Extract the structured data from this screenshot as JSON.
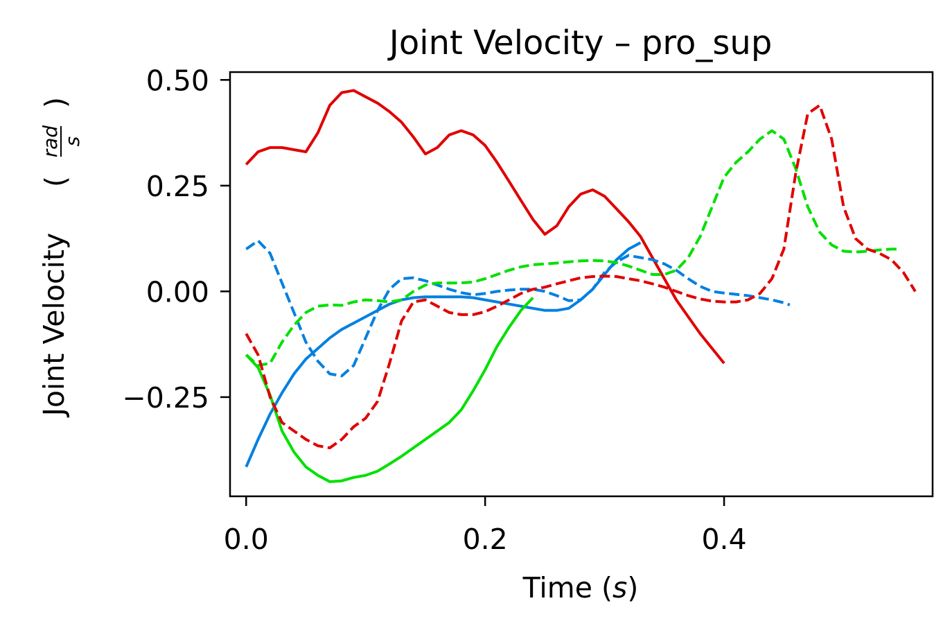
{
  "chart_data": {
    "type": "line",
    "title": "Joint Velocity – pro_sup",
    "xlabel_text": "Time (",
    "xlabel_unit": "s",
    "xlabel_close": ")",
    "ylabel_text": "Joint Velocity",
    "ylabel_unit_num": "rad",
    "ylabel_unit_den": "s",
    "xlim": [
      -0.0135,
      0.5745
    ],
    "ylim": [
      -0.4845,
      0.5185
    ],
    "xticks": [
      0.0,
      0.2,
      0.4
    ],
    "xtick_labels": [
      "0.0",
      "0.2",
      "0.4"
    ],
    "yticks": [
      0.5,
      0.25,
      0.0,
      -0.25
    ],
    "ytick_labels": [
      "0.50",
      "0.25",
      "0.00",
      "−0.25"
    ],
    "grid": false,
    "series": [
      {
        "color": "#e00000",
        "dash": "solid",
        "x": [
          0.0,
          0.01,
          0.02,
          0.03,
          0.04,
          0.05,
          0.06,
          0.07,
          0.08,
          0.09,
          0.1,
          0.11,
          0.12,
          0.13,
          0.14,
          0.15,
          0.16,
          0.17,
          0.18,
          0.19,
          0.2,
          0.21,
          0.22,
          0.23,
          0.24,
          0.25,
          0.26,
          0.27,
          0.28,
          0.29,
          0.3,
          0.31,
          0.32,
          0.33,
          0.34,
          0.35,
          0.36,
          0.37,
          0.38,
          0.39,
          0.4
        ],
        "y": [
          0.3,
          0.33,
          0.34,
          0.34,
          0.335,
          0.33,
          0.375,
          0.44,
          0.47,
          0.475,
          0.46,
          0.445,
          0.425,
          0.4,
          0.365,
          0.325,
          0.34,
          0.37,
          0.38,
          0.37,
          0.345,
          0.305,
          0.26,
          0.215,
          0.17,
          0.135,
          0.155,
          0.2,
          0.23,
          0.24,
          0.225,
          0.195,
          0.165,
          0.13,
          0.08,
          0.03,
          -0.02,
          -0.06,
          -0.1,
          -0.135,
          -0.17
        ]
      },
      {
        "color": "#0080e0",
        "dash": "solid",
        "x": [
          0.0,
          0.01,
          0.02,
          0.03,
          0.04,
          0.05,
          0.06,
          0.07,
          0.08,
          0.09,
          0.1,
          0.11,
          0.12,
          0.13,
          0.14,
          0.15,
          0.16,
          0.17,
          0.18,
          0.19,
          0.2,
          0.21,
          0.22,
          0.23,
          0.24,
          0.25,
          0.26,
          0.27,
          0.28,
          0.29,
          0.3,
          0.31,
          0.32,
          0.33
        ],
        "y": [
          -0.415,
          -0.35,
          -0.29,
          -0.24,
          -0.195,
          -0.16,
          -0.135,
          -0.11,
          -0.09,
          -0.075,
          -0.06,
          -0.045,
          -0.03,
          -0.02,
          -0.015,
          -0.013,
          -0.013,
          -0.013,
          -0.013,
          -0.015,
          -0.02,
          -0.025,
          -0.03,
          -0.035,
          -0.04,
          -0.045,
          -0.045,
          -0.04,
          -0.02,
          0.005,
          0.04,
          0.075,
          0.1,
          0.115
        ]
      },
      {
        "color": "#00e000",
        "dash": "solid",
        "x": [
          0.0,
          0.01,
          0.02,
          0.03,
          0.04,
          0.05,
          0.06,
          0.07,
          0.08,
          0.09,
          0.1,
          0.11,
          0.12,
          0.13,
          0.14,
          0.15,
          0.16,
          0.17,
          0.18,
          0.19,
          0.2,
          0.21,
          0.22,
          0.23,
          0.24
        ],
        "y": [
          -0.15,
          -0.18,
          -0.245,
          -0.33,
          -0.38,
          -0.415,
          -0.435,
          -0.45,
          -0.448,
          -0.44,
          -0.435,
          -0.425,
          -0.408,
          -0.39,
          -0.37,
          -0.35,
          -0.33,
          -0.31,
          -0.28,
          -0.235,
          -0.185,
          -0.13,
          -0.085,
          -0.045,
          -0.015
        ]
      },
      {
        "color": "#0080e0",
        "dash": "dashed",
        "x": [
          0.0,
          0.01,
          0.02,
          0.03,
          0.04,
          0.05,
          0.06,
          0.07,
          0.08,
          0.09,
          0.1,
          0.11,
          0.12,
          0.13,
          0.14,
          0.15,
          0.16,
          0.17,
          0.18,
          0.19,
          0.2,
          0.21,
          0.22,
          0.23,
          0.24,
          0.25,
          0.26,
          0.27,
          0.28,
          0.29,
          0.3,
          0.31,
          0.32,
          0.33,
          0.34,
          0.35,
          0.36,
          0.37,
          0.38,
          0.39,
          0.4,
          0.41,
          0.42,
          0.43,
          0.44,
          0.45,
          0.455
        ],
        "y": [
          0.1,
          0.12,
          0.09,
          0.02,
          -0.05,
          -0.12,
          -0.165,
          -0.195,
          -0.2,
          -0.175,
          -0.11,
          -0.045,
          0.005,
          0.03,
          0.032,
          0.025,
          0.015,
          0.005,
          -0.003,
          -0.008,
          -0.005,
          0.0,
          0.003,
          0.005,
          0.005,
          0.0,
          -0.01,
          -0.022,
          -0.02,
          0.005,
          0.045,
          0.07,
          0.085,
          0.08,
          0.075,
          0.065,
          0.05,
          0.03,
          0.012,
          0.0,
          -0.004,
          -0.007,
          -0.01,
          -0.015,
          -0.02,
          -0.027,
          -0.032
        ]
      },
      {
        "color": "#00e000",
        "dash": "dashed",
        "x": [
          0.0,
          0.01,
          0.02,
          0.03,
          0.04,
          0.05,
          0.06,
          0.07,
          0.08,
          0.09,
          0.1,
          0.11,
          0.12,
          0.13,
          0.14,
          0.15,
          0.16,
          0.17,
          0.18,
          0.19,
          0.2,
          0.21,
          0.22,
          0.23,
          0.24,
          0.25,
          0.26,
          0.27,
          0.28,
          0.29,
          0.3,
          0.31,
          0.32,
          0.33,
          0.34,
          0.35,
          0.36,
          0.37,
          0.38,
          0.39,
          0.4,
          0.41,
          0.42,
          0.43,
          0.44,
          0.45,
          0.46,
          0.47,
          0.48,
          0.49,
          0.5,
          0.51,
          0.52,
          0.53,
          0.54,
          0.545
        ],
        "y": [
          -0.15,
          -0.175,
          -0.17,
          -0.12,
          -0.08,
          -0.05,
          -0.035,
          -0.032,
          -0.033,
          -0.025,
          -0.02,
          -0.022,
          -0.025,
          -0.02,
          0.0,
          0.015,
          0.02,
          0.02,
          0.02,
          0.022,
          0.03,
          0.04,
          0.05,
          0.058,
          0.063,
          0.065,
          0.067,
          0.07,
          0.072,
          0.073,
          0.072,
          0.068,
          0.06,
          0.05,
          0.04,
          0.04,
          0.05,
          0.08,
          0.13,
          0.2,
          0.27,
          0.305,
          0.33,
          0.36,
          0.38,
          0.36,
          0.29,
          0.2,
          0.14,
          0.11,
          0.095,
          0.093,
          0.095,
          0.098,
          0.1,
          0.1
        ]
      },
      {
        "color": "#e00000",
        "dash": "dashed",
        "x": [
          0.0,
          0.01,
          0.02,
          0.03,
          0.04,
          0.05,
          0.06,
          0.07,
          0.08,
          0.09,
          0.1,
          0.11,
          0.12,
          0.13,
          0.14,
          0.15,
          0.16,
          0.17,
          0.18,
          0.19,
          0.2,
          0.21,
          0.22,
          0.23,
          0.24,
          0.25,
          0.26,
          0.27,
          0.28,
          0.29,
          0.3,
          0.31,
          0.32,
          0.33,
          0.34,
          0.35,
          0.36,
          0.37,
          0.38,
          0.39,
          0.4,
          0.41,
          0.42,
          0.43,
          0.44,
          0.45,
          0.46,
          0.47,
          0.48,
          0.49,
          0.5,
          0.51,
          0.52,
          0.53,
          0.54,
          0.55,
          0.56
        ],
        "y": [
          -0.1,
          -0.15,
          -0.25,
          -0.31,
          -0.33,
          -0.35,
          -0.365,
          -0.37,
          -0.35,
          -0.32,
          -0.3,
          -0.26,
          -0.17,
          -0.07,
          -0.025,
          -0.02,
          -0.035,
          -0.05,
          -0.055,
          -0.055,
          -0.048,
          -0.035,
          -0.02,
          -0.005,
          0.005,
          0.01,
          0.018,
          0.025,
          0.032,
          0.035,
          0.036,
          0.035,
          0.03,
          0.025,
          0.018,
          0.01,
          0.0,
          -0.01,
          -0.018,
          -0.023,
          -0.025,
          -0.025,
          -0.02,
          -0.005,
          0.03,
          0.1,
          0.28,
          0.42,
          0.44,
          0.36,
          0.2,
          0.125,
          0.1,
          0.09,
          0.075,
          0.045,
          0.0
        ]
      }
    ]
  }
}
